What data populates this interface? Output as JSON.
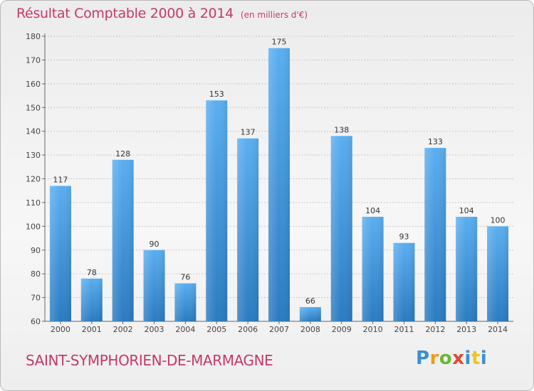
{
  "header": {
    "title": "Résultat Comptable 2000 à 2014",
    "subtitle": "(en milliers d'€)"
  },
  "footer": {
    "commune": "SAINT-SYMPHORIEN-DE-MARMAGNE",
    "logo": [
      "P",
      "r",
      "o",
      "x",
      "i",
      "t",
      "i"
    ]
  },
  "colors": {
    "accent": "#c43a66",
    "bar_top": "#5aaef0",
    "bar_bottom": "#2a7bc0",
    "grid": "#c8c8c8"
  },
  "chart_data": {
    "type": "bar",
    "title": "Résultat Comptable 2000 à 2014",
    "subtitle": "(en milliers d'€)",
    "xlabel": "",
    "ylabel": "",
    "categories": [
      "2000",
      "2001",
      "2002",
      "2003",
      "2004",
      "2005",
      "2006",
      "2007",
      "2008",
      "2009",
      "2010",
      "2011",
      "2012",
      "2013",
      "2014"
    ],
    "values": [
      117,
      78,
      128,
      90,
      76,
      153,
      137,
      175,
      66,
      138,
      104,
      93,
      133,
      104,
      100
    ],
    "ylim": [
      60,
      180
    ],
    "yticks": [
      60,
      70,
      80,
      90,
      100,
      110,
      120,
      130,
      140,
      150,
      160,
      170,
      180
    ],
    "grid": true,
    "data_labels": true
  }
}
